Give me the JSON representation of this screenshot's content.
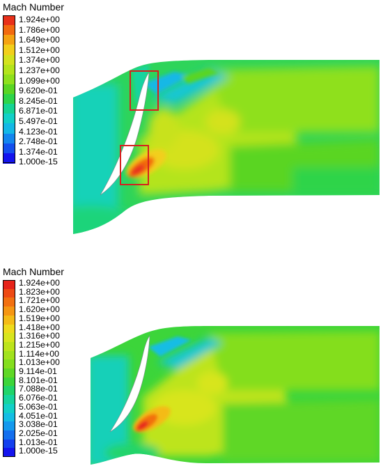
{
  "panels": [
    {
      "legend": {
        "title": "Mach Number",
        "ticks": [
          "1.924e+00",
          "1.786e+00",
          "1.649e+00",
          "1.512e+00",
          "1.374e+00",
          "1.237e+00",
          "1.099e+00",
          "9.620e-01",
          "8.245e-01",
          "6.871e-01",
          "5.497e-01",
          "4.123e-01",
          "2.748e-01",
          "1.374e-01",
          "1.000e-15"
        ],
        "colors": [
          "#e8301a",
          "#f26a10",
          "#f5a313",
          "#f2cf1b",
          "#d4e21e",
          "#b4e41c",
          "#8fe01d",
          "#5ad524",
          "#2ed44a",
          "#16d493",
          "#12d0c8",
          "#14b8e6",
          "#1486ee",
          "#1450ee",
          "#1414ee"
        ]
      },
      "highlight_boxes": 2
    },
    {
      "legend": {
        "title": "Mach Number",
        "ticks": [
          "1.924e+00",
          "1.823e+00",
          "1.721e+00",
          "1.620e+00",
          "1.519e+00",
          "1.418e+00",
          "1.316e+00",
          "1.215e+00",
          "1.114e+00",
          "1.013e+00",
          "9.114e-01",
          "8.101e-01",
          "7.088e-01",
          "6.076e-01",
          "5.063e-01",
          "4.051e-01",
          "3.038e-01",
          "2.025e-01",
          "1.013e-01",
          "1.000e-15"
        ],
        "colors": [
          "#e6231a",
          "#ee4a14",
          "#f27011",
          "#f59613",
          "#f4bb17",
          "#eedb1d",
          "#d8e51e",
          "#bde41c",
          "#a2e21d",
          "#84de1e",
          "#5fd726",
          "#3cd53a",
          "#20d46a",
          "#16d49e",
          "#12d0c8",
          "#14bde4",
          "#1499ee",
          "#146fee",
          "#1440ee",
          "#1414ee"
        ]
      },
      "highlight_boxes": 0
    }
  ]
}
